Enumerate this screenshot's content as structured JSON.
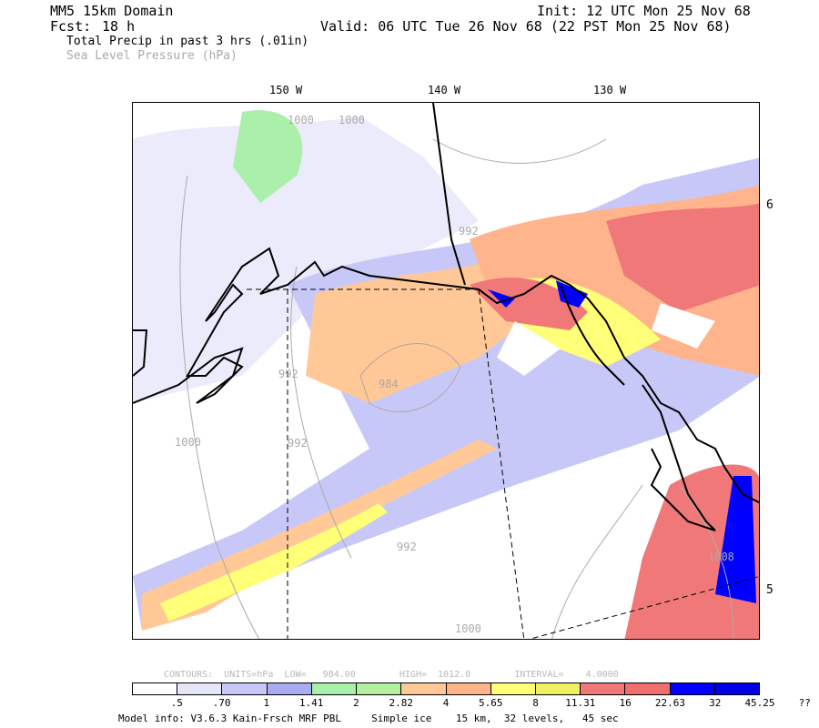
{
  "header": {
    "domain_title": "MM5 15km Domain",
    "fcst_label": "Fcst:",
    "fcst_value": "18 h",
    "init": "Init: 12 UTC Mon 25 Nov 68",
    "valid": "Valid: 06 UTC Tue 26 Nov 68 (22 PST Mon 25 Nov 68)",
    "field1": "Total Precip in past 3 hrs (.01in)",
    "field2": "Sea Level Pressure (hPa)"
  },
  "map": {
    "longitude_labels": [
      "150 W",
      "140 W",
      "130 W"
    ],
    "latitude_labels": [
      "6",
      "5"
    ],
    "isobar_labels": [
      "1000",
      "1000",
      "992",
      "992",
      "984",
      "1000",
      "992",
      "992",
      "1000",
      "1008"
    ]
  },
  "contours_info": "CONTOURS:  UNITS=hPa  LOW=   984.00        HIGH=  1012.0        INTERVAL=    4.0000",
  "legend": {
    "colors": [
      "#ffffff",
      "#e6e6fa",
      "#c8c8f8",
      "#aaaaf0",
      "#aaf0aa",
      "#b4f0a0",
      "#ffc896",
      "#ffb48c",
      "#ffff78",
      "#f0f064",
      "#f07878",
      "#f06e6e",
      "#0000ff",
      "#0000e6"
    ],
    "labels": [
      ".5",
      ".70",
      "1",
      "1.41",
      "2",
      "2.82",
      "4",
      "5.65",
      "8",
      "11.31",
      "16",
      "22.63",
      "32",
      "45.25",
      "??"
    ]
  },
  "model_info": "Model info: V3.6.3 Kain-Frsch MRF PBL     Simple ice    15 km,  32 levels,   45 sec"
}
